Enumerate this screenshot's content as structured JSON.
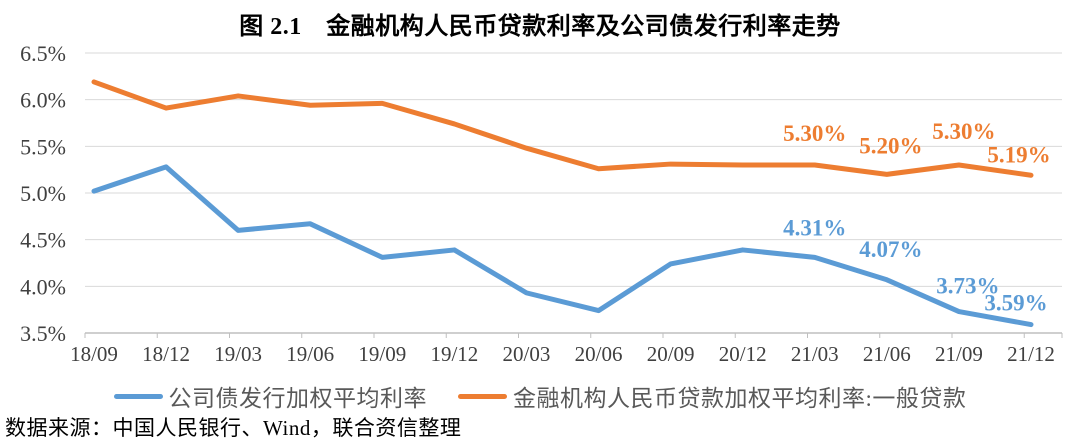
{
  "chart_data": {
    "type": "line",
    "title": "图 2.1　金融机构人民币贷款利率及公司债发行利率走势",
    "source_note": "数据来源：中国人民银行、Wind，联合资信整理",
    "categories": [
      "18/09",
      "18/12",
      "19/03",
      "19/06",
      "19/09",
      "19/12",
      "20/03",
      "20/06",
      "20/09",
      "20/12",
      "21/03",
      "21/06",
      "21/09",
      "21/12"
    ],
    "series": [
      {
        "name": "公司债发行加权平均利率",
        "color": "#5B9BD5",
        "values": [
          5.02,
          5.28,
          4.6,
          4.67,
          4.31,
          4.39,
          3.93,
          3.74,
          4.24,
          4.39,
          4.31,
          4.07,
          3.73,
          3.59
        ],
        "point_labels": [
          {
            "index": 10,
            "text": "4.31%",
            "dx": 0,
            "dy": -30
          },
          {
            "index": 11,
            "text": "4.07%",
            "dx": 4,
            "dy": -31
          },
          {
            "index": 12,
            "text": "3.73%",
            "dx": 9,
            "dy": -26
          },
          {
            "index": 13,
            "text": "3.59%",
            "dx": -15,
            "dy": -22
          }
        ]
      },
      {
        "name": "金融机构人民币贷款加权平均利率:一般贷款",
        "color": "#ED7D31",
        "values": [
          6.19,
          5.91,
          6.04,
          5.94,
          5.96,
          5.74,
          5.48,
          5.26,
          5.31,
          5.3,
          5.3,
          5.2,
          5.3,
          5.19
        ],
        "point_labels": [
          {
            "index": 10,
            "text": "5.30%",
            "dx": 0,
            "dy": -32
          },
          {
            "index": 11,
            "text": "5.20%",
            "dx": 4,
            "dy": -29
          },
          {
            "index": 12,
            "text": "5.30%",
            "dx": 5,
            "dy": -34
          },
          {
            "index": 13,
            "text": "5.19%",
            "dx": -12,
            "dy": -21
          }
        ]
      }
    ],
    "y_ticks": [
      "6.5%",
      "6.0%",
      "5.5%",
      "5.0%",
      "4.5%",
      "4.0%",
      "3.5%"
    ],
    "ylim": [
      3.5,
      6.5
    ],
    "grid": true,
    "legend_position": "bottom",
    "colors": {
      "gridline": "#D9D9D9",
      "axis_line": "#BFBFBF",
      "tick_label": "#404040",
      "legend_text": "#595959"
    }
  }
}
